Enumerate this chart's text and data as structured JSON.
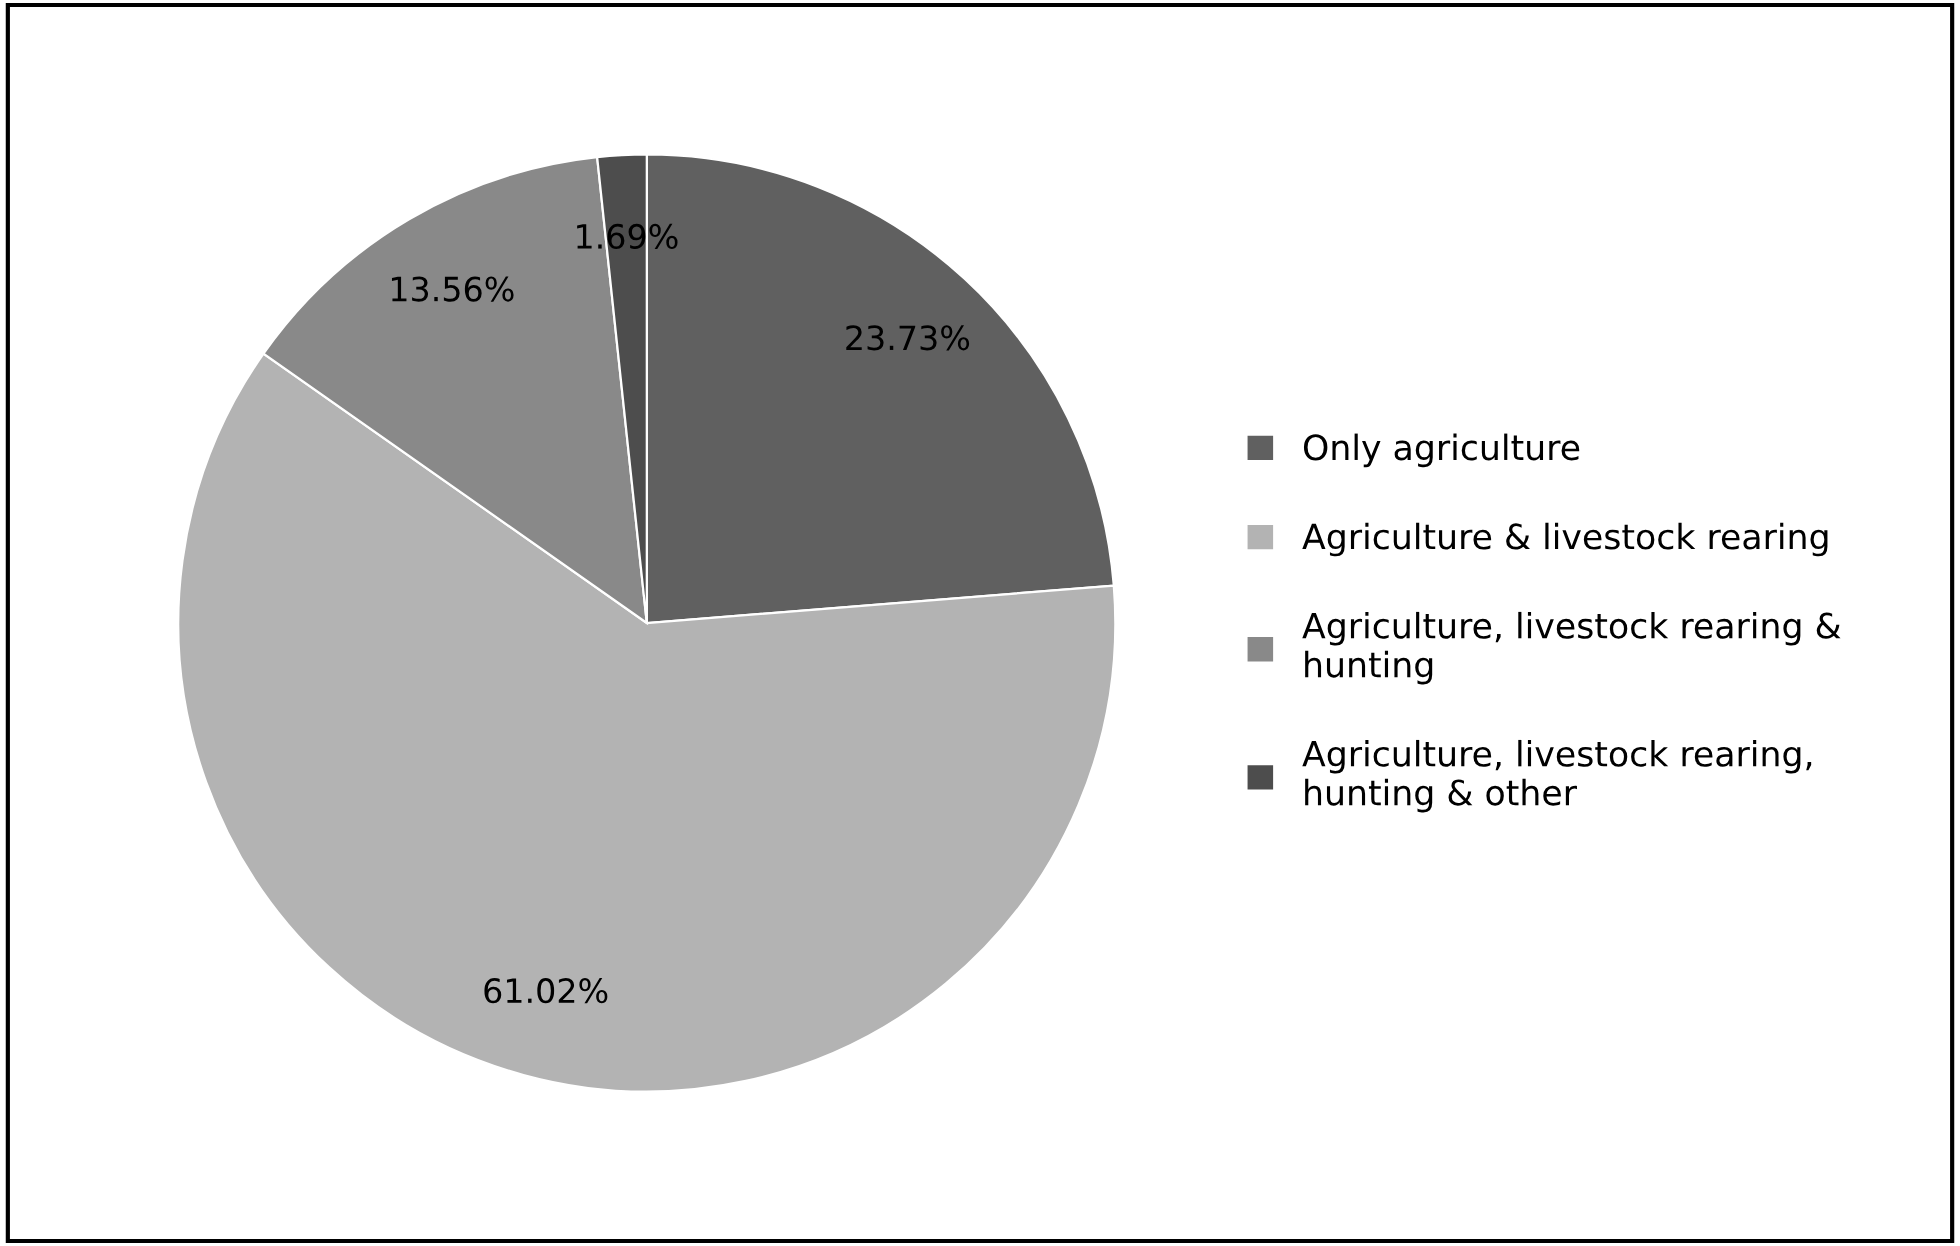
{
  "chart_data": {
    "type": "pie",
    "categories": [
      "Only agriculture",
      "Agriculture & livestock rearing",
      "Agriculture, livestock rearing & hunting",
      "Agriculture, livestock rearing, hunting & other"
    ],
    "values": [
      23.73,
      61.02,
      13.56,
      1.69
    ],
    "colors": [
      "#606060",
      "#b3b3b3",
      "#898989",
      "#4d4d4d"
    ],
    "value_labels": [
      "23.73%",
      "61.02%",
      "13.56%",
      "1.69%"
    ],
    "legend": "right"
  }
}
